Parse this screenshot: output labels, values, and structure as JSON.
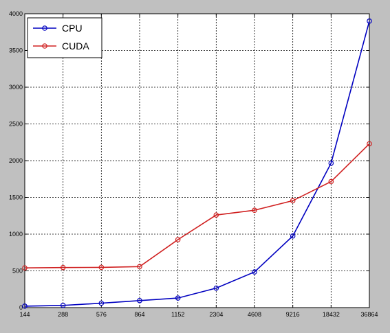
{
  "chart_data": {
    "type": "line",
    "title": "",
    "xlabel": "",
    "ylabel": "",
    "categories": [
      "144",
      "288",
      "576",
      "864",
      "1152",
      "2304",
      "4608",
      "9216",
      "18432",
      "36864"
    ],
    "ylim": [
      0,
      4000
    ],
    "yticks": [
      "0",
      "500",
      "1000",
      "1500",
      "2000",
      "2500",
      "3000",
      "3500",
      "4000"
    ],
    "grid": true,
    "legend": "top-left",
    "series": [
      {
        "name": "CPU",
        "color": "#0000c0",
        "values": [
          20,
          30,
          60,
          95,
          130,
          265,
          485,
          975,
          1965,
          3900
        ]
      },
      {
        "name": "CUDA",
        "color": "#d02020",
        "values": [
          540,
          545,
          548,
          558,
          925,
          1260,
          1325,
          1455,
          1715,
          2230
        ]
      }
    ]
  }
}
